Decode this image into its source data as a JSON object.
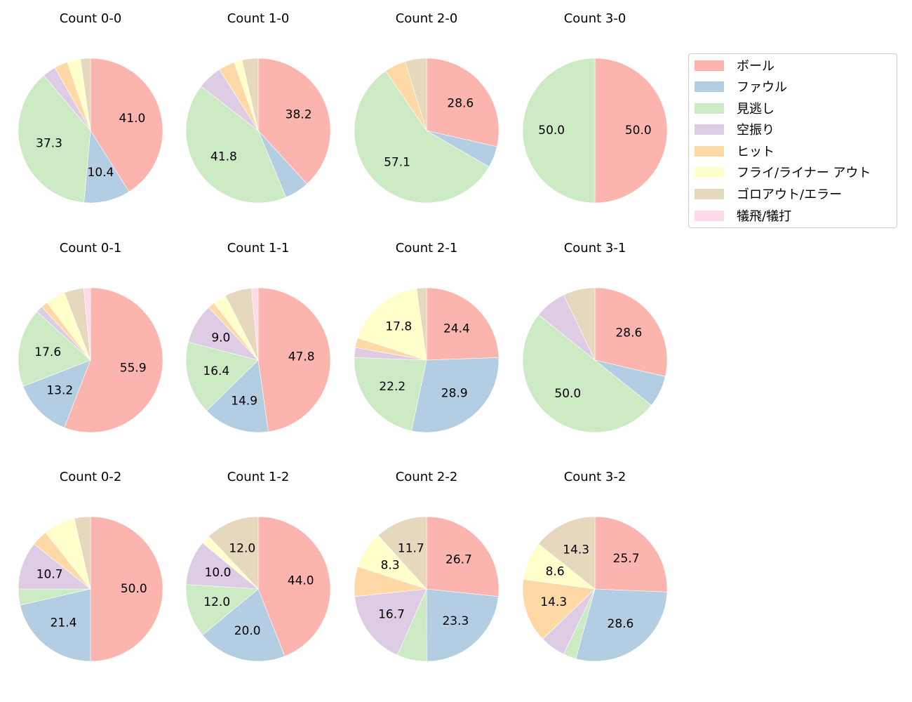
{
  "chart_data": {
    "type": "pie",
    "layout": {
      "rows": 3,
      "cols": 4,
      "legend_position": "upper right outside",
      "start_angle": 90,
      "direction": "clockwise"
    },
    "legend": {
      "entries": [
        {
          "label": "ボール",
          "color": "#fbb4ae"
        },
        {
          "label": "ファウル",
          "color": "#b3cde3"
        },
        {
          "label": "見逃し",
          "color": "#ccebc5"
        },
        {
          "label": "空振り",
          "color": "#decbe4"
        },
        {
          "label": "ヒット",
          "color": "#fed9a6"
        },
        {
          "label": "フライ/ライナー アウト",
          "color": "#ffffcc"
        },
        {
          "label": "ゴロアウト/エラー",
          "color": "#e5d8bd"
        },
        {
          "label": "犠飛/犠打",
          "color": "#fddaec"
        }
      ]
    },
    "categories": [
      "ボール",
      "ファウル",
      "見逃し",
      "空振り",
      "ヒット",
      "フライ/ライナー アウト",
      "ゴロアウト/エラー",
      "犠飛/犠打"
    ],
    "charts": [
      {
        "title": "Count 0-0",
        "values": [
          41.0,
          10.4,
          37.3,
          3.0,
          3.0,
          3.0,
          2.2,
          0
        ],
        "labels": [
          "41.0",
          "10.4",
          "37.3",
          "",
          "",
          "",
          "",
          ""
        ]
      },
      {
        "title": "Count 1-0",
        "values": [
          38.2,
          5.5,
          41.8,
          5.5,
          3.6,
          1.8,
          3.6,
          0
        ],
        "labels": [
          "38.2",
          "",
          "41.8",
          "",
          "",
          "",
          "",
          ""
        ]
      },
      {
        "title": "Count 2-0",
        "values": [
          28.6,
          4.8,
          57.1,
          0,
          4.8,
          0,
          4.8,
          0
        ],
        "labels": [
          "28.6",
          "",
          "57.1",
          "",
          "",
          "",
          "",
          ""
        ]
      },
      {
        "title": "Count 3-0",
        "values": [
          50.0,
          0,
          50.0,
          0,
          0,
          0,
          0,
          0
        ],
        "labels": [
          "50.0",
          "",
          "50.0",
          "",
          "",
          "",
          "",
          ""
        ]
      },
      {
        "title": "Count 0-1",
        "values": [
          55.9,
          13.2,
          17.6,
          1.5,
          1.5,
          4.4,
          4.4,
          1.5
        ],
        "labels": [
          "55.9",
          "13.2",
          "17.6",
          "",
          "",
          "",
          "",
          ""
        ]
      },
      {
        "title": "Count 1-1",
        "values": [
          47.8,
          14.9,
          16.4,
          9.0,
          1.5,
          3.0,
          6.0,
          1.5
        ],
        "labels": [
          "47.8",
          "14.9",
          "16.4",
          "9.0",
          "",
          "",
          "",
          ""
        ]
      },
      {
        "title": "Count 2-1",
        "values": [
          24.4,
          28.9,
          22.2,
          2.2,
          2.2,
          17.8,
          2.2,
          0
        ],
        "labels": [
          "24.4",
          "28.9",
          "22.2",
          "",
          "",
          "17.8",
          "",
          ""
        ]
      },
      {
        "title": "Count 3-1",
        "values": [
          28.6,
          7.1,
          50.0,
          7.1,
          0,
          0,
          7.1,
          0
        ],
        "labels": [
          "28.6",
          "",
          "50.0",
          "",
          "",
          "",
          "",
          ""
        ]
      },
      {
        "title": "Count 0-2",
        "values": [
          50.0,
          21.4,
          3.6,
          10.7,
          3.6,
          7.1,
          3.6,
          0
        ],
        "labels": [
          "50.0",
          "21.4",
          "",
          "10.7",
          "",
          "",
          "",
          ""
        ]
      },
      {
        "title": "Count 1-2",
        "values": [
          44.0,
          20.0,
          12.0,
          10.0,
          0,
          2.0,
          12.0,
          0
        ],
        "labels": [
          "44.0",
          "20.0",
          "12.0",
          "10.0",
          "",
          "",
          "12.0",
          ""
        ]
      },
      {
        "title": "Count 2-2",
        "values": [
          26.7,
          23.3,
          6.7,
          16.7,
          6.7,
          8.3,
          11.7,
          0
        ],
        "labels": [
          "26.7",
          "23.3",
          "",
          "16.7",
          "",
          "8.3",
          "11.7",
          ""
        ]
      },
      {
        "title": "Count 3-2",
        "values": [
          25.7,
          28.6,
          2.9,
          5.7,
          14.3,
          8.6,
          14.3,
          0
        ],
        "labels": [
          "25.7",
          "28.6",
          "",
          "",
          "14.3",
          "8.6",
          "14.3",
          ""
        ]
      }
    ]
  }
}
